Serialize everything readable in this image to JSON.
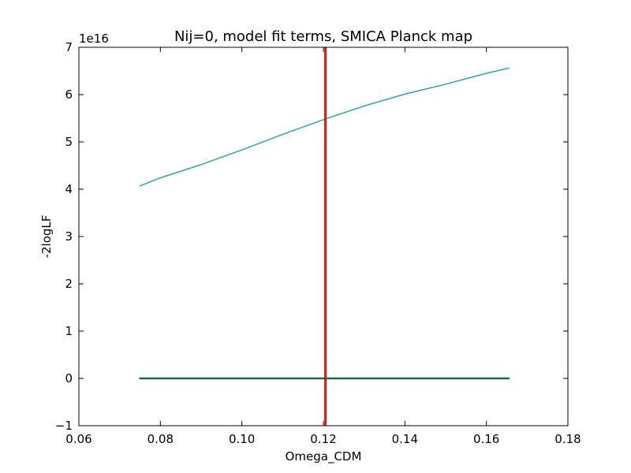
{
  "chart_data": {
    "type": "line",
    "title": "Nij=0, model fit terms, SMICA Planck map",
    "xlabel": "Omega_CDM",
    "ylabel": "-2logLF",
    "y_offset_label": "1e16",
    "xlim": [
      0.06,
      0.18
    ],
    "ylim": [
      -1,
      7
    ],
    "x_ticks": [
      "0.06",
      "0.08",
      "0.10",
      "0.12",
      "0.14",
      "0.16",
      "0.18"
    ],
    "y_ticks": [
      "−1",
      "0",
      "1",
      "2",
      "3",
      "4",
      "5",
      "6",
      "7"
    ],
    "grid": false,
    "series": [
      {
        "color": "#2ca4a4",
        "width": 1.5,
        "x": [
          0.075,
          0.08,
          0.09,
          0.1,
          0.11,
          0.12,
          0.13,
          0.14,
          0.15,
          0.16,
          0.1655
        ],
        "y": [
          4.07,
          4.24,
          4.52,
          4.83,
          5.16,
          5.47,
          5.76,
          6.01,
          6.22,
          6.45,
          6.56
        ]
      },
      {
        "color": "#1b6b3a",
        "width": 2.5,
        "x": [
          0.075,
          0.1655
        ],
        "y": [
          0.0,
          0.0
        ]
      }
    ],
    "vlines": [
      {
        "x": 0.1205,
        "color": "#e8120c",
        "width": 3
      }
    ]
  }
}
